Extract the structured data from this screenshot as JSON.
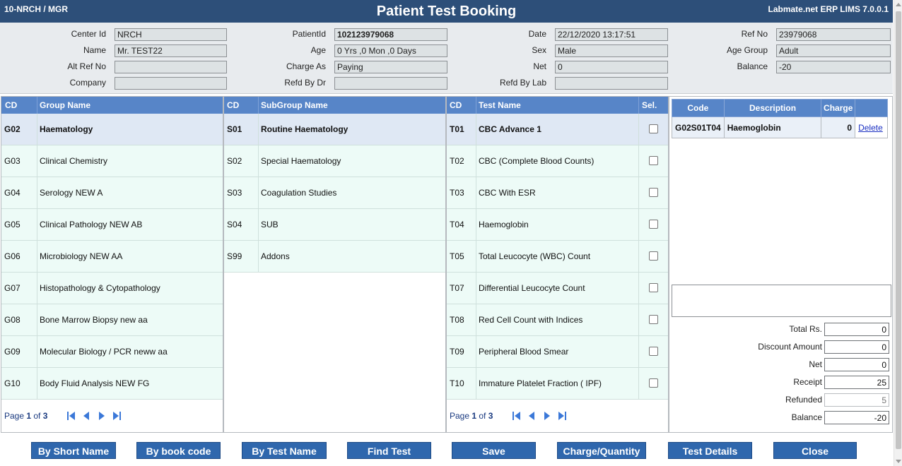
{
  "window": {
    "left_info": "10-NRCH / MGR",
    "title": "Patient Test Booking",
    "right_info": "Labmate.net ERP LIMS 7.0.0.1"
  },
  "header": {
    "center_id": {
      "label": "Center Id",
      "value": "NRCH"
    },
    "name": {
      "label": "Name",
      "value": "Mr. TEST22"
    },
    "alt_ref_no": {
      "label": "Alt Ref No",
      "value": ""
    },
    "company": {
      "label": "Company",
      "value": ""
    },
    "patient_id": {
      "label": "PatientId",
      "value": "102123979068"
    },
    "age": {
      "label": "Age",
      "value": "0 Yrs ,0 Mon ,0 Days"
    },
    "charge_as": {
      "label": "Charge As",
      "value": "Paying"
    },
    "refd_by_dr": {
      "label": "Refd By Dr",
      "value": ""
    },
    "date": {
      "label": "Date",
      "value": "22/12/2020 13:17:51"
    },
    "sex": {
      "label": "Sex",
      "value": "Male"
    },
    "net": {
      "label": "Net",
      "value": "0"
    },
    "refd_by_lab": {
      "label": "Refd By Lab",
      "value": ""
    },
    "ref_no": {
      "label": "Ref No",
      "value": "23979068"
    },
    "age_group": {
      "label": "Age Group",
      "value": "Adult"
    },
    "balance": {
      "label": "Balance",
      "value": "-20"
    }
  },
  "groups": {
    "col_cd": "CD",
    "col_name": "Group Name",
    "rows": [
      {
        "cd": "G02",
        "name": "Haematology",
        "selected": true
      },
      {
        "cd": "G03",
        "name": "Clinical Chemistry"
      },
      {
        "cd": "G04",
        "name": "Serology NEW A"
      },
      {
        "cd": "G05",
        "name": "Clinical Pathology NEW AB"
      },
      {
        "cd": "G06",
        "name": "Microbiology NEW AA"
      },
      {
        "cd": "G07",
        "name": "Histopathology & Cytopathology"
      },
      {
        "cd": "G08",
        "name": "Bone Marrow Biopsy new aa"
      },
      {
        "cd": "G09",
        "name": "Molecular Biology / PCR neww aa"
      },
      {
        "cd": "G10",
        "name": "Body Fluid Analysis NEW FG"
      }
    ],
    "page_prefix": "Page ",
    "page_current": "1",
    "page_of": " of ",
    "page_total": "3"
  },
  "subgroups": {
    "col_cd": "CD",
    "col_name": "SubGroup Name",
    "rows": [
      {
        "cd": "S01",
        "name": "Routine Haematology",
        "selected": true
      },
      {
        "cd": "S02",
        "name": "Special Haematology"
      },
      {
        "cd": "S03",
        "name": "Coagulation Studies"
      },
      {
        "cd": "S04",
        "name": "SUB"
      },
      {
        "cd": "S99",
        "name": "Addons"
      }
    ]
  },
  "tests": {
    "col_cd": "CD",
    "col_name": "Test Name",
    "col_sel": "Sel.",
    "rows": [
      {
        "cd": "T01",
        "name": "CBC Advance 1",
        "selected": true
      },
      {
        "cd": "T02",
        "name": "CBC (Complete Blood Counts)"
      },
      {
        "cd": "T03",
        "name": "CBC With ESR"
      },
      {
        "cd": "T04",
        "name": "Haemoglobin"
      },
      {
        "cd": "T05",
        "name": "Total Leucocyte (WBC) Count"
      },
      {
        "cd": "T07",
        "name": "Differential Leucocyte Count"
      },
      {
        "cd": "T08",
        "name": "Red Cell Count with Indices"
      },
      {
        "cd": "T09",
        "name": "Peripheral Blood Smear"
      },
      {
        "cd": "T10",
        "name": "Immature Platelet Fraction ( IPF)"
      }
    ],
    "page_prefix": "Page ",
    "page_current": "1",
    "page_of": " of ",
    "page_total": "3"
  },
  "booked": {
    "col_code": "Code",
    "col_desc": "Description",
    "col_charge": "Charge",
    "rows": [
      {
        "code": "G02S01T04",
        "desc": "Haemoglobin",
        "charge": "0",
        "action": "Delete"
      }
    ]
  },
  "totals": {
    "total": {
      "label": "Total Rs.",
      "value": "0"
    },
    "discount": {
      "label": "Discount Amount",
      "value": "0"
    },
    "net": {
      "label": "Net",
      "value": "0"
    },
    "receipt": {
      "label": "Receipt",
      "value": "25"
    },
    "refunded": {
      "label": "Refunded",
      "value": "5"
    },
    "balance": {
      "label": "Balance",
      "value": "-20"
    }
  },
  "buttons": {
    "by_short_name": "By Short Name",
    "by_book_code": "By book code",
    "by_test_name": "By Test Name",
    "find_test": "Find Test",
    "save": "Save",
    "charge_quantity": "Charge/Quantity",
    "test_details": "Test Details",
    "close": "Close"
  },
  "colors": {
    "title_bar": "#2d4f79",
    "table_header": "#5785c8",
    "row_bg": "#edfbf7",
    "selected_row": "#dfe8f4",
    "button": "#2f67ad"
  },
  "icons": {
    "pager": [
      "first-page-icon",
      "prev-page-icon",
      "next-page-icon",
      "last-page-icon"
    ]
  }
}
